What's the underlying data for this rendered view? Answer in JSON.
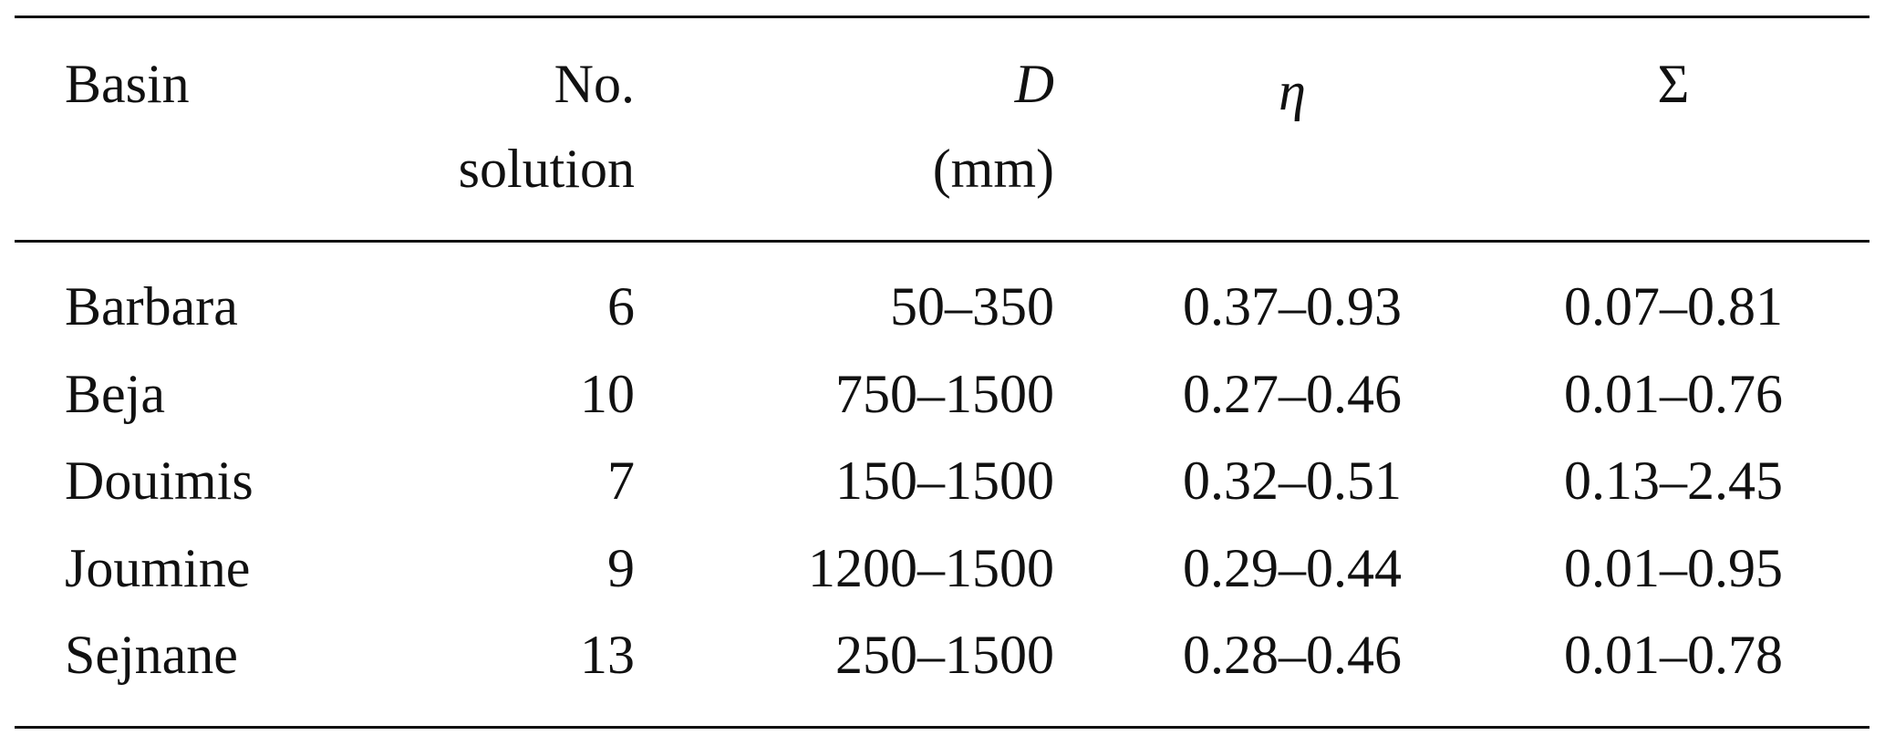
{
  "table": {
    "headers": {
      "basin": "Basin",
      "no_line1": "No.",
      "no_line2": "solution",
      "d_line1": "D",
      "d_line2": "(mm)",
      "eta": "η",
      "sigma": "Σ"
    },
    "rows": [
      {
        "basin": "Barbara",
        "no": "6",
        "d": "50–350",
        "eta": "0.37–0.93",
        "sigma": "0.07–0.81"
      },
      {
        "basin": "Beja",
        "no": "10",
        "d": "750–1500",
        "eta": "0.27–0.46",
        "sigma": "0.01–0.76"
      },
      {
        "basin": "Douimis",
        "no": "7",
        "d": "150–1500",
        "eta": "0.32–0.51",
        "sigma": "0.13–2.45"
      },
      {
        "basin": "Joumine",
        "no": "9",
        "d": "1200–1500",
        "eta": "0.29–0.44",
        "sigma": "0.01–0.95"
      },
      {
        "basin": "Sejnane",
        "no": "13",
        "d": "250–1500",
        "eta": "0.28–0.46",
        "sigma": "0.01–0.78"
      }
    ]
  }
}
